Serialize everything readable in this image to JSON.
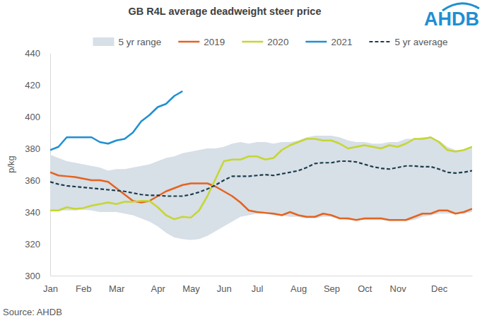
{
  "chart_data": {
    "type": "line",
    "title": "GB R4L average deadweight steer price",
    "y_label": "p/kg",
    "source": "Source: AHDB",
    "logo": "AHDB",
    "legend": "top",
    "grid": false,
    "categories": [
      "Jan",
      null,
      null,
      null,
      "Feb",
      null,
      null,
      null,
      "Mar",
      null,
      null,
      null,
      null,
      "Apr",
      null,
      null,
      null,
      "May",
      null,
      null,
      null,
      "Jun",
      null,
      null,
      null,
      "Jul",
      null,
      null,
      null,
      null,
      "Aug",
      null,
      null,
      null,
      "Sep",
      null,
      null,
      null,
      "Oct",
      null,
      null,
      null,
      "Nov",
      null,
      null,
      null,
      null,
      "Dec",
      null,
      null,
      null,
      null
    ],
    "ylim": [
      300,
      440
    ],
    "yticks": [
      300,
      320,
      340,
      360,
      380,
      400,
      420,
      440
    ],
    "series": [
      {
        "name": "5 yr range",
        "type": "area",
        "color": "#d7dfe7",
        "low": [
          341,
          341,
          341,
          341,
          341.5,
          341,
          340,
          340,
          340,
          339,
          338,
          336,
          334,
          331,
          327,
          324,
          323,
          322.5,
          323,
          325,
          328,
          331,
          334,
          337,
          338,
          339,
          339,
          338,
          338,
          337,
          337,
          336,
          336,
          337,
          337,
          336,
          335,
          335,
          335,
          335,
          335,
          334.5,
          334.5,
          334.5,
          335,
          337,
          338,
          339,
          339,
          339,
          339,
          340
        ],
        "values": [
          376,
          374,
          372,
          371,
          370,
          369,
          368,
          366,
          367,
          367,
          368,
          369,
          370,
          372,
          374,
          375,
          377,
          378,
          379,
          380,
          380,
          381,
          383,
          384,
          383,
          384,
          384,
          383,
          384,
          384,
          385,
          387,
          388,
          388,
          388,
          387,
          385,
          384,
          384,
          383,
          383,
          384,
          384,
          386,
          386,
          387,
          387,
          385,
          381,
          379,
          379,
          381
        ]
      },
      {
        "name": "2019",
        "type": "line",
        "color": "#e5631e",
        "line_style": "solid",
        "values": [
          365,
          363,
          362.5,
          362,
          361,
          360,
          360,
          359,
          355,
          351,
          347,
          346,
          347,
          350,
          353,
          355,
          357,
          358,
          358,
          358,
          356,
          353,
          350,
          346,
          341,
          340,
          339.5,
          339,
          338,
          340,
          338,
          337,
          337,
          339,
          338,
          336,
          336,
          335,
          336,
          336,
          336,
          335,
          335,
          335,
          337,
          339,
          339,
          341,
          341,
          339,
          340,
          342
        ]
      },
      {
        "name": "2020",
        "type": "line",
        "color": "#c6d630",
        "line_style": "solid",
        "values": [
          341,
          341,
          343,
          342,
          342.5,
          344,
          345,
          346,
          345,
          346.5,
          346.5,
          347,
          347,
          343,
          338,
          335.5,
          337,
          336.5,
          341,
          350,
          361,
          372,
          373,
          373,
          375,
          375,
          373,
          374,
          379,
          382,
          384,
          386,
          386,
          385,
          385,
          383,
          380,
          381,
          382,
          381,
          380,
          382,
          381,
          383,
          386,
          386,
          387,
          384,
          379,
          378,
          379,
          381
        ]
      },
      {
        "name": "2021",
        "type": "line",
        "color": "#1f8fd2",
        "line_style": "solid",
        "values": [
          379,
          381,
          387,
          387,
          387,
          387,
          384,
          383,
          385,
          386,
          390,
          397,
          401,
          406,
          408,
          413,
          416,
          null,
          null,
          null,
          null,
          null,
          null,
          null,
          null,
          null,
          null,
          null,
          null,
          null,
          null,
          null,
          null,
          null,
          null,
          null,
          null,
          null,
          null,
          null,
          null,
          null,
          null,
          null,
          null,
          null,
          null,
          null,
          null,
          null,
          null,
          null
        ]
      },
      {
        "name": "5 yr average",
        "type": "line",
        "color": "#1d3c4c",
        "line_style": "dashed",
        "values": [
          359,
          357.5,
          356.5,
          356,
          355.5,
          355,
          354.5,
          354,
          353.5,
          353,
          352,
          351,
          350.5,
          350.5,
          350,
          350,
          350,
          351,
          352.5,
          354.5,
          357,
          360,
          362.5,
          362.5,
          362.5,
          363,
          363.5,
          363,
          364,
          365,
          366,
          368,
          370.5,
          371,
          371,
          372,
          372,
          371.5,
          370,
          368.5,
          367.5,
          367,
          368,
          369,
          369,
          368.5,
          368.5,
          367,
          365,
          364.5,
          365,
          366
        ]
      }
    ]
  }
}
